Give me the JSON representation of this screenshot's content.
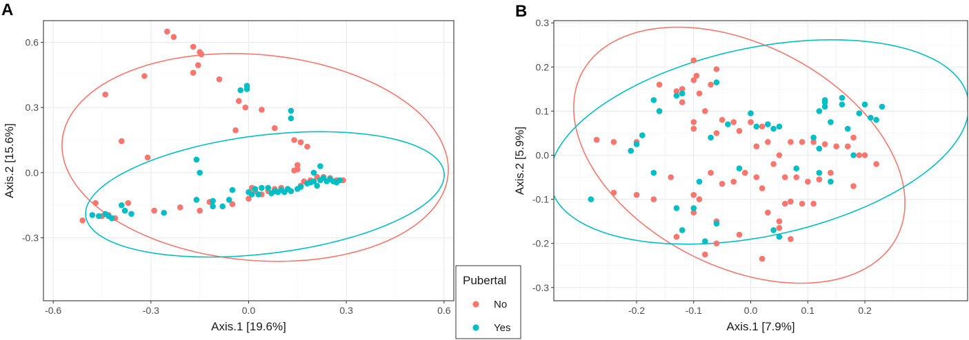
{
  "chart_data": [
    {
      "panel": "A",
      "type": "scatter",
      "xlabel": "Axis.1   [19.6%]",
      "ylabel": "Axis.2   [15.6%]",
      "xlim": [
        -0.63,
        0.63
      ],
      "ylim": [
        -0.59,
        0.7
      ],
      "xticks": [
        -0.6,
        -0.3,
        0.0,
        0.3,
        0.6
      ],
      "xtick_labels": [
        "-0.6",
        "-0.3",
        "0.0",
        "0.3",
        "0.6"
      ],
      "yticks": [
        -0.3,
        0.0,
        0.3,
        0.6
      ],
      "ytick_labels": [
        "-0.3",
        "0.0",
        "0.3",
        "0.6"
      ],
      "grid": true,
      "series": [
        {
          "name": "No",
          "color": "#F8766D",
          "points": [
            [
              -0.25,
              0.65
            ],
            [
              -0.23,
              0.625
            ],
            [
              -0.17,
              0.58
            ],
            [
              -0.15,
              0.555
            ],
            [
              -0.145,
              0.545
            ],
            [
              -0.155,
              0.495
            ],
            [
              -0.17,
              0.46
            ],
            [
              -0.09,
              0.43
            ],
            [
              -0.44,
              0.36
            ],
            [
              -0.32,
              0.445
            ],
            [
              -0.03,
              0.33
            ],
            [
              -0.01,
              0.3
            ],
            [
              0.04,
              0.29
            ],
            [
              -0.04,
              0.195
            ],
            [
              0.08,
              0.205
            ],
            [
              -0.39,
              0.145
            ],
            [
              -0.31,
              0.07
            ],
            [
              0.14,
              0.15
            ],
            [
              0.16,
              0.14
            ],
            [
              0.18,
              0.12
            ],
            [
              0.15,
              0.035
            ],
            [
              0.15,
              0.015
            ],
            [
              0.14,
              0.01
            ],
            [
              -0.51,
              -0.22
            ],
            [
              -0.47,
              -0.14
            ],
            [
              -0.45,
              -0.2
            ],
            [
              -0.43,
              -0.195
            ],
            [
              -0.41,
              -0.21
            ],
            [
              -0.37,
              -0.14
            ],
            [
              -0.29,
              -0.175
            ],
            [
              -0.21,
              -0.16
            ],
            [
              -0.15,
              -0.175
            ],
            [
              -0.12,
              -0.135
            ],
            [
              -0.05,
              -0.145
            ],
            [
              0.0,
              -0.12
            ],
            [
              0.02,
              -0.085
            ],
            [
              0.01,
              -0.07
            ],
            [
              0.04,
              -0.1
            ],
            [
              0.06,
              -0.085
            ],
            [
              0.08,
              -0.075
            ],
            [
              0.1,
              -0.07
            ],
            [
              0.12,
              -0.075
            ],
            [
              0.16,
              -0.06
            ],
            [
              0.17,
              -0.04
            ],
            [
              0.19,
              -0.035
            ],
            [
              0.21,
              -0.02
            ],
            [
              0.23,
              -0.02
            ],
            [
              0.25,
              -0.025
            ],
            [
              0.27,
              -0.035
            ],
            [
              0.29,
              -0.035
            ]
          ]
        },
        {
          "name": "Yes",
          "color": "#00BFC4",
          "points": [
            [
              -0.005,
              0.4
            ],
            [
              -0.005,
              0.385
            ],
            [
              -0.025,
              0.38
            ],
            [
              0.13,
              0.285
            ],
            [
              0.13,
              0.25
            ],
            [
              -0.16,
              0.06
            ],
            [
              -0.15,
              0.0
            ],
            [
              0.22,
              0.03
            ],
            [
              0.2,
              0.0
            ],
            [
              -0.48,
              -0.195
            ],
            [
              -0.46,
              -0.2
            ],
            [
              -0.44,
              -0.19
            ],
            [
              -0.43,
              -0.2
            ],
            [
              -0.42,
              -0.21
            ],
            [
              -0.39,
              -0.15
            ],
            [
              -0.38,
              -0.175
            ],
            [
              -0.36,
              -0.19
            ],
            [
              -0.26,
              -0.185
            ],
            [
              -0.16,
              -0.125
            ],
            [
              -0.11,
              -0.155
            ],
            [
              -0.11,
              -0.13
            ],
            [
              -0.08,
              -0.155
            ],
            [
              -0.06,
              -0.125
            ],
            [
              -0.05,
              -0.08
            ],
            [
              0.0,
              -0.09
            ],
            [
              0.01,
              -0.1
            ],
            [
              0.02,
              -0.075
            ],
            [
              0.03,
              -0.1
            ],
            [
              0.04,
              -0.07
            ],
            [
              0.06,
              -0.07
            ],
            [
              0.07,
              -0.095
            ],
            [
              0.08,
              -0.085
            ],
            [
              0.09,
              -0.09
            ],
            [
              0.1,
              -0.08
            ],
            [
              0.11,
              -0.09
            ],
            [
              0.12,
              -0.075
            ],
            [
              0.13,
              -0.085
            ],
            [
              0.15,
              -0.075
            ],
            [
              0.16,
              -0.065
            ],
            [
              0.18,
              -0.05
            ],
            [
              0.2,
              -0.04
            ],
            [
              0.21,
              -0.06
            ],
            [
              0.22,
              -0.035
            ],
            [
              0.23,
              -0.025
            ],
            [
              0.24,
              -0.04
            ],
            [
              0.25,
              -0.03
            ],
            [
              0.26,
              -0.04
            ],
            [
              0.27,
              -0.045
            ],
            [
              0.28,
              -0.035
            ],
            [
              0.19,
              -0.045
            ]
          ]
        }
      ],
      "ellipses": [
        {
          "name": "No",
          "color": "#F8766D",
          "cx": 0.02,
          "cy": 0.07,
          "rx": 0.6,
          "ry": 0.47,
          "angle_deg": -14
        },
        {
          "name": "Yes",
          "color": "#00BFC4",
          "cx": 0.05,
          "cy": -0.1,
          "rx": 0.56,
          "ry": 0.27,
          "angle_deg": 12
        }
      ]
    },
    {
      "panel": "B",
      "type": "scatter",
      "xlabel": "Axis.1   [7.9%]",
      "ylabel": "Axis.2   [5.9%]",
      "xlim": [
        -0.345,
        0.38
      ],
      "ylim": [
        -0.33,
        0.305
      ],
      "xticks": [
        -0.2,
        -0.1,
        0.0,
        0.1,
        0.2
      ],
      "xtick_labels": [
        "-0.2",
        "-0.1",
        "0.0",
        "0.1",
        "0.2"
      ],
      "yticks": [
        -0.3,
        -0.2,
        -0.1,
        0.0,
        0.1,
        0.2,
        0.3
      ],
      "ytick_labels": [
        "-0.3",
        "-0.2",
        "-0.1",
        "0.0",
        "0.1",
        "0.2",
        "0.3"
      ],
      "grid": true,
      "series": [
        {
          "name": "No",
          "color": "#F8766D",
          "points": [
            [
              -0.27,
              0.035
            ],
            [
              -0.24,
              0.03
            ],
            [
              -0.2,
              0.03
            ],
            [
              -0.16,
              0.16
            ],
            [
              -0.16,
              0.1
            ],
            [
              -0.13,
              0.145
            ],
            [
              -0.12,
              0.12
            ],
            [
              -0.12,
              0.15
            ],
            [
              -0.1,
              0.17
            ],
            [
              -0.095,
              0.18
            ],
            [
              -0.1,
              0.215
            ],
            [
              -0.09,
              0.14
            ],
            [
              -0.07,
              0.16
            ],
            [
              -0.06,
              0.195
            ],
            [
              -0.08,
              0.1
            ],
            [
              -0.1,
              0.075
            ],
            [
              -0.1,
              0.06
            ],
            [
              -0.06,
              0.05
            ],
            [
              -0.05,
              0.08
            ],
            [
              -0.03,
              0.075
            ],
            [
              -0.02,
              0.055
            ],
            [
              0.0,
              0.075
            ],
            [
              0.02,
              0.065
            ],
            [
              0.01,
              0.02
            ],
            [
              0.03,
              0.03
            ],
            [
              0.05,
              0.0
            ],
            [
              0.07,
              0.03
            ],
            [
              0.09,
              0.03
            ],
            [
              0.11,
              0.03
            ],
            [
              0.13,
              0.025
            ],
            [
              0.15,
              0.02
            ],
            [
              0.17,
              0.02
            ],
            [
              0.18,
              0.04
            ],
            [
              0.19,
              0.0
            ],
            [
              0.2,
              0.0
            ],
            [
              0.22,
              -0.02
            ],
            [
              0.18,
              -0.07
            ],
            [
              -0.24,
              -0.085
            ],
            [
              -0.2,
              -0.09
            ],
            [
              -0.17,
              -0.1
            ],
            [
              -0.14,
              -0.05
            ],
            [
              -0.1,
              -0.09
            ],
            [
              -0.09,
              -0.1
            ],
            [
              -0.07,
              -0.04
            ],
            [
              -0.05,
              -0.065
            ],
            [
              -0.03,
              -0.06
            ],
            [
              -0.01,
              -0.04
            ],
            [
              0.01,
              -0.05
            ],
            [
              0.02,
              -0.075
            ],
            [
              0.04,
              -0.02
            ],
            [
              0.06,
              -0.05
            ],
            [
              0.08,
              -0.05
            ],
            [
              0.1,
              -0.06
            ],
            [
              0.12,
              -0.055
            ],
            [
              0.14,
              -0.04
            ],
            [
              0.06,
              -0.11
            ],
            [
              0.07,
              -0.105
            ],
            [
              0.09,
              -0.11
            ],
            [
              0.11,
              -0.11
            ],
            [
              0.03,
              -0.13
            ],
            [
              0.05,
              -0.15
            ],
            [
              0.05,
              -0.165
            ],
            [
              0.07,
              -0.19
            ],
            [
              -0.06,
              -0.15
            ],
            [
              -0.06,
              -0.2
            ],
            [
              -0.08,
              -0.225
            ],
            [
              -0.02,
              -0.18
            ],
            [
              0.02,
              -0.235
            ],
            [
              -0.13,
              -0.185
            ],
            [
              -0.1,
              -0.13
            ]
          ]
        },
        {
          "name": "Yes",
          "color": "#00BFC4",
          "points": [
            [
              -0.28,
              -0.1
            ],
            [
              -0.21,
              0.01
            ],
            [
              -0.2,
              0.025
            ],
            [
              -0.19,
              0.045
            ],
            [
              -0.17,
              0.125
            ],
            [
              -0.16,
              0.1
            ],
            [
              -0.13,
              0.135
            ],
            [
              -0.12,
              0.14
            ],
            [
              -0.06,
              0.165
            ],
            [
              -0.09,
              -0.06
            ],
            [
              -0.17,
              -0.04
            ],
            [
              -0.13,
              -0.12
            ],
            [
              -0.12,
              -0.17
            ],
            [
              -0.1,
              -0.12
            ],
            [
              -0.08,
              -0.195
            ],
            [
              -0.06,
              -0.155
            ],
            [
              -0.04,
              0.07
            ],
            [
              -0.02,
              -0.03
            ],
            [
              0.0,
              0.095
            ],
            [
              0.01,
              0.065
            ],
            [
              0.03,
              0.07
            ],
            [
              0.04,
              0.06
            ],
            [
              0.05,
              0.065
            ],
            [
              0.08,
              -0.03
            ],
            [
              0.11,
              0.04
            ],
            [
              0.12,
              0.1
            ],
            [
              0.13,
              0.12
            ],
            [
              0.13,
              0.125
            ],
            [
              0.13,
              0.11
            ],
            [
              0.14,
              0.075
            ],
            [
              0.16,
              0.13
            ],
            [
              0.16,
              0.115
            ],
            [
              0.17,
              0.06
            ],
            [
              0.19,
              0.095
            ],
            [
              0.2,
              0.115
            ],
            [
              0.21,
              0.085
            ],
            [
              0.22,
              0.08
            ],
            [
              0.23,
              0.11
            ],
            [
              0.12,
              0.015
            ],
            [
              0.12,
              -0.04
            ],
            [
              0.14,
              -0.06
            ],
            [
              0.18,
              0.0
            ],
            [
              0.04,
              -0.17
            ],
            [
              0.05,
              -0.185
            ],
            [
              -0.07,
              0.04
            ]
          ]
        }
      ],
      "ellipses": [
        {
          "name": "No",
          "color": "#F8766D",
          "cx": -0.02,
          "cy": 0.0,
          "rx": 0.34,
          "ry": 0.23,
          "angle_deg": -45
        },
        {
          "name": "Yes",
          "color": "#00BFC4",
          "cx": 0.015,
          "cy": 0.03,
          "rx": 0.38,
          "ry": 0.21,
          "angle_deg": 18
        }
      ]
    }
  ],
  "legend": {
    "title": "Pubertal",
    "items": [
      {
        "label": "No",
        "color": "#F8766D"
      },
      {
        "label": "Yes",
        "color": "#00BFC4"
      }
    ]
  }
}
